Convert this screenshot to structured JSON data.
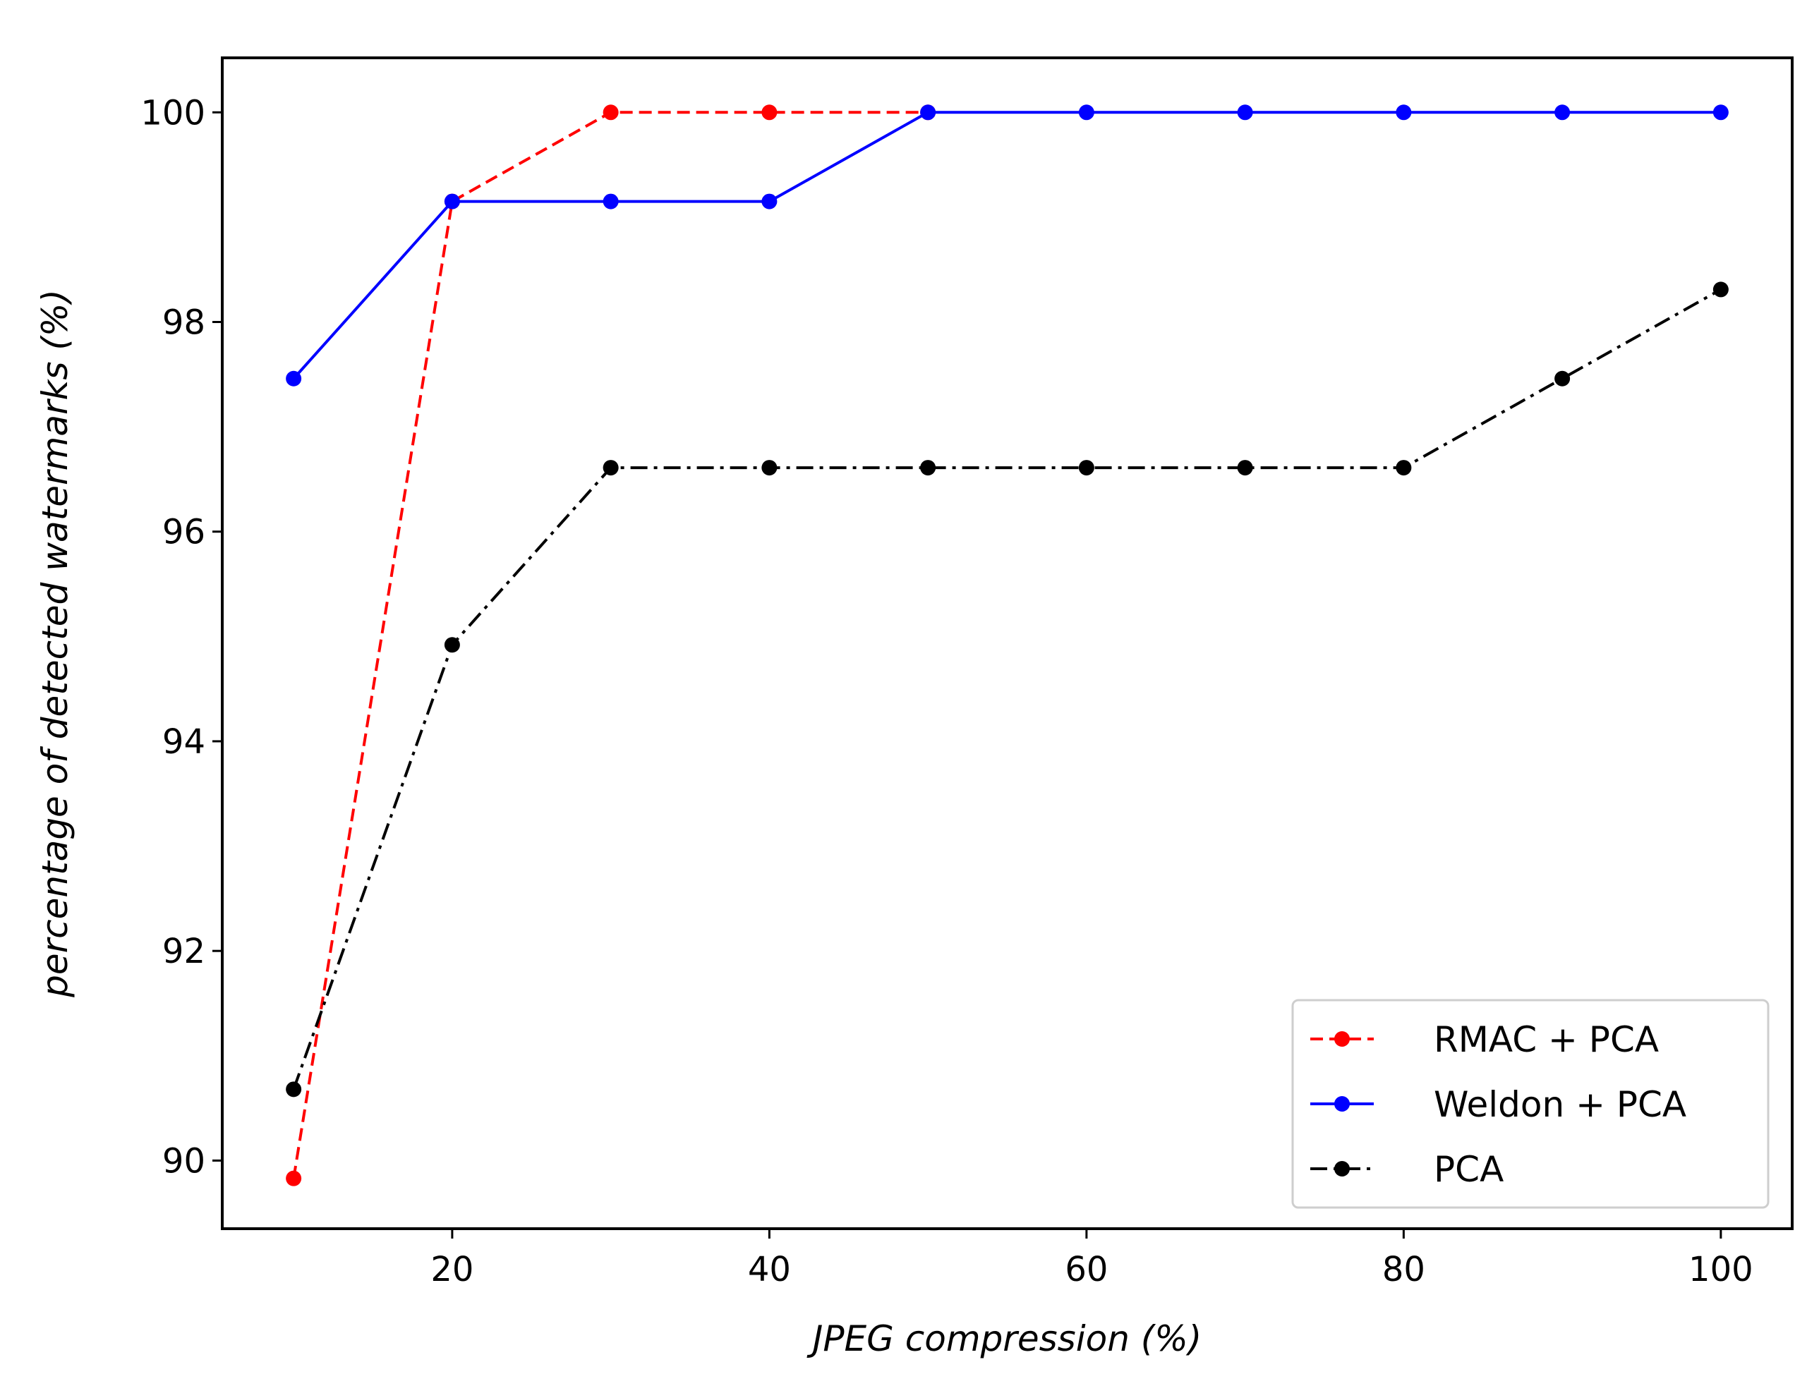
{
  "chart_data": {
    "type": "line",
    "title": "",
    "xlabel": "JPEG compression (%)",
    "ylabel": "percentage of detected watermarks (%)",
    "xlim": [
      5.5,
      104.5
    ],
    "ylim": [
      89.35,
      100.52
    ],
    "xticks": [
      20,
      40,
      60,
      80,
      100
    ],
    "yticks": [
      90,
      92,
      94,
      96,
      98,
      100
    ],
    "grid": false,
    "legend_position": "lower-right",
    "x": [
      10,
      20,
      30,
      40,
      50,
      60,
      70,
      80,
      90,
      100
    ],
    "series": [
      {
        "name": "RMAC + PCA",
        "color": "#ff0000",
        "linestyle": "dashed",
        "x": [
          10,
          20,
          30,
          40,
          50
        ],
        "values": [
          89.83,
          99.15,
          100.0,
          100.0,
          100.0
        ]
      },
      {
        "name": "Weldon + PCA",
        "color": "#0000ff",
        "linestyle": "solid",
        "x": [
          10,
          20,
          30,
          40,
          50,
          60,
          70,
          80,
          90,
          100
        ],
        "values": [
          97.46,
          99.15,
          99.15,
          99.15,
          100.0,
          100.0,
          100.0,
          100.0,
          100.0,
          100.0
        ]
      },
      {
        "name": "PCA",
        "color": "#000000",
        "linestyle": "dashdot",
        "x": [
          10,
          20,
          30,
          40,
          50,
          60,
          70,
          80,
          90,
          100
        ],
        "values": [
          90.68,
          94.92,
          96.61,
          96.61,
          96.61,
          96.61,
          96.61,
          96.61,
          97.46,
          98.31
        ]
      }
    ]
  }
}
